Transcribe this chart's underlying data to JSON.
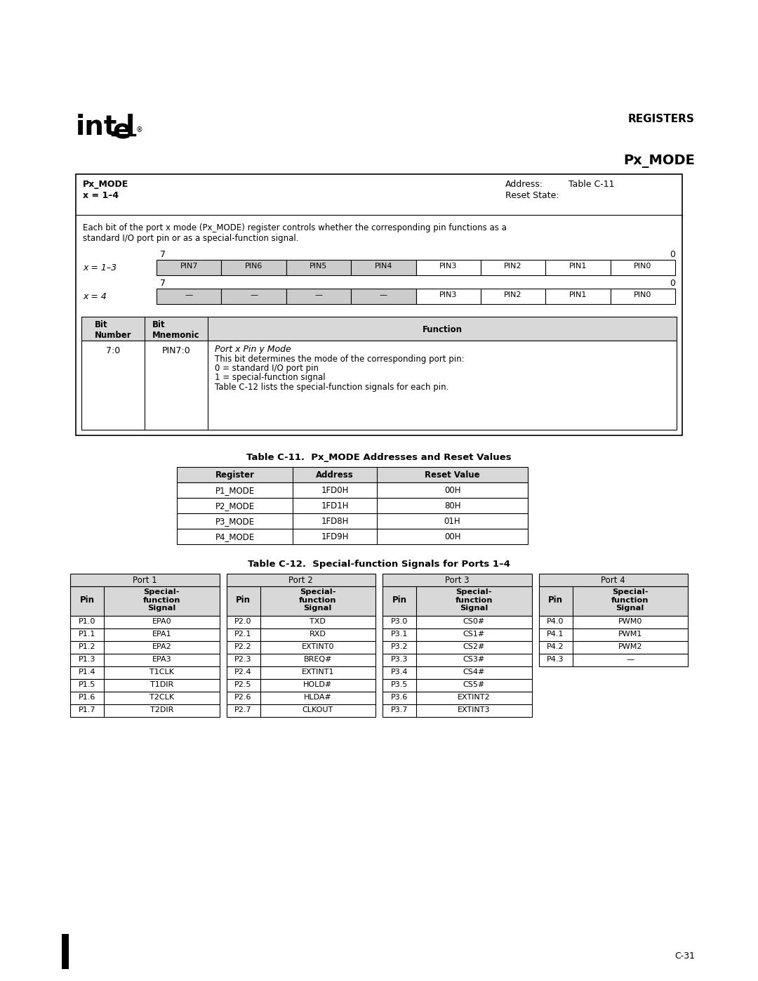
{
  "page_bg": "#ffffff",
  "page_width": 10.8,
  "page_height": 13.97,
  "register_box": {
    "description": "Each bit of the port x mode (Px_MODE) register controls whether the corresponding pin functions as a\nstandard I/O port pin or as a special-function signal.",
    "row1_bits": [
      "PIN7",
      "PIN6",
      "PIN5",
      "PIN4",
      "PIN3",
      "PIN2",
      "PIN1",
      "PIN0"
    ],
    "row1_shaded": [
      true,
      true,
      true,
      true,
      false,
      false,
      false,
      false
    ],
    "row2_bits": [
      "—",
      "—",
      "—",
      "—",
      "PIN3",
      "PIN2",
      "PIN1",
      "PIN0"
    ],
    "row2_shaded": [
      true,
      true,
      true,
      true,
      false,
      false,
      false,
      false
    ]
  },
  "table_c11_title": "Table C-11.  Px_MODE Addresses and Reset Values",
  "table_c11_data": [
    [
      "P1_MODE",
      "1FD0H",
      "00H"
    ],
    [
      "P2_MODE",
      "1FD1H",
      "80H"
    ],
    [
      "P3_MODE",
      "1FD8H",
      "01H"
    ],
    [
      "P4_MODE",
      "1FD9H",
      "00H"
    ]
  ],
  "table_c12_title": "Table C-12.  Special-function Signals for Ports 1–4",
  "table_c12_ports": [
    {
      "header": "Port 1",
      "data": [
        [
          "P1.0",
          "EPA0"
        ],
        [
          "P1.1",
          "EPA1"
        ],
        [
          "P1.2",
          "EPA2"
        ],
        [
          "P1.3",
          "EPA3"
        ],
        [
          "P1.4",
          "T1CLK"
        ],
        [
          "P1.5",
          "T1DIR"
        ],
        [
          "P1.6",
          "T2CLK"
        ],
        [
          "P1.7",
          "T2DIR"
        ]
      ]
    },
    {
      "header": "Port 2",
      "data": [
        [
          "P2.0",
          "TXD"
        ],
        [
          "P2.1",
          "RXD"
        ],
        [
          "P2.2",
          "EXTINT0"
        ],
        [
          "P2.3",
          "BREQ#"
        ],
        [
          "P2.4",
          "EXTINT1"
        ],
        [
          "P2.5",
          "HOLD#"
        ],
        [
          "P2.6",
          "HLDA#"
        ],
        [
          "P2.7",
          "CLKOUT"
        ]
      ]
    },
    {
      "header": "Port 3",
      "data": [
        [
          "P3.0",
          "CS0#"
        ],
        [
          "P3.1",
          "CS1#"
        ],
        [
          "P3.2",
          "CS2#"
        ],
        [
          "P3.3",
          "CS3#"
        ],
        [
          "P3.4",
          "CS4#"
        ],
        [
          "P3.5",
          "CS5#"
        ],
        [
          "P3.6",
          "EXTINT2"
        ],
        [
          "P3.7",
          "EXTINT3"
        ]
      ]
    },
    {
      "header": "Port 4",
      "data": [
        [
          "P4.0",
          "PWM0"
        ],
        [
          "P4.1",
          "PWM1"
        ],
        [
          "P4.2",
          "PWM2"
        ],
        [
          "P4.3",
          "—"
        ]
      ]
    }
  ],
  "footer_page": "C-31"
}
